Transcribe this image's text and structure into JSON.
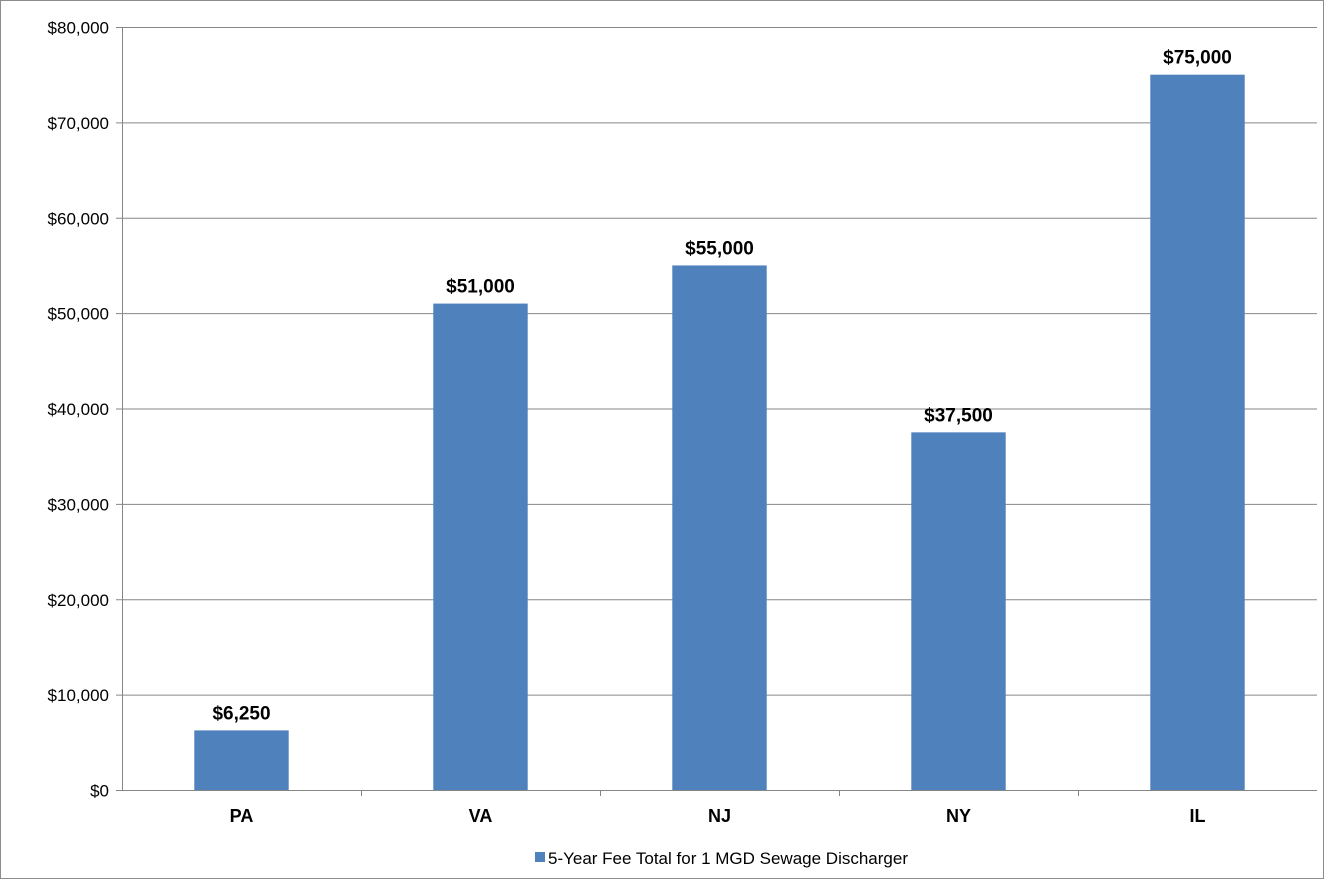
{
  "chart_data": {
    "type": "bar",
    "title": "",
    "xlabel": "",
    "ylabel": "",
    "categories": [
      "PA",
      "VA",
      "NJ",
      "NY",
      "IL"
    ],
    "series": [
      {
        "name": "5-Year Fee Total for 1 MGD Sewage Discharger",
        "values": [
          6250,
          51000,
          55000,
          37500,
          75000
        ],
        "data_labels": [
          "$6,250",
          "$51,000",
          "$55,000",
          "$37,500",
          "$75,000"
        ],
        "color": "#4f81bd"
      }
    ],
    "ylim": [
      0,
      80000
    ],
    "y_ticks": [
      0,
      10000,
      20000,
      30000,
      40000,
      50000,
      60000,
      70000,
      80000
    ],
    "y_tick_labels": [
      "$0",
      "$10,000",
      "$20,000",
      "$30,000",
      "$40,000",
      "$50,000",
      "$60,000",
      "$70,000",
      "$80,000"
    ],
    "grid": true,
    "legend_position": "bottom",
    "gridline_color": "#868686",
    "axis_color": "#868686"
  }
}
